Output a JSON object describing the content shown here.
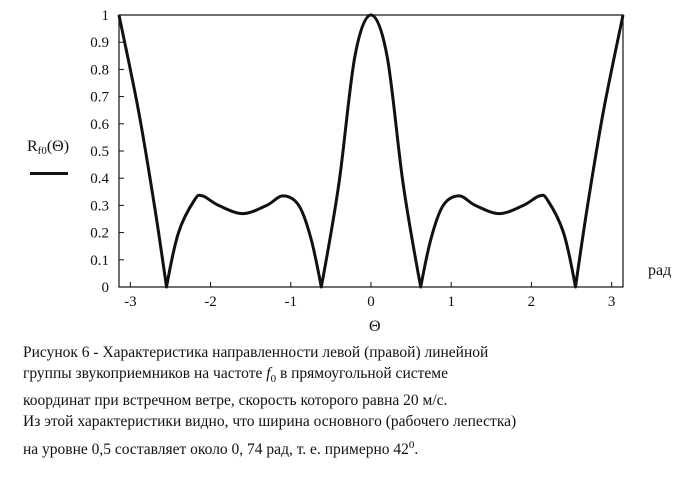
{
  "chart_data": {
    "type": "line",
    "function": "R_f0(Θ)",
    "xlabel": "Θ",
    "xunit": "рад",
    "ylabel_main": "R",
    "ylabel_sub": "f0",
    "ylabel_arg": "(Θ)",
    "xlim": [
      -3.1416,
      3.1416
    ],
    "ylim": [
      0,
      1
    ],
    "x_ticks": [
      "-3",
      "-2",
      "-1",
      "0",
      "1",
      "2",
      "3"
    ],
    "y_ticks": [
      "0",
      "0.1",
      "0.2",
      "0.3",
      "0.4",
      "0.5",
      "0.6",
      "0.7",
      "0.8",
      "0.9",
      "1"
    ],
    "grid": false,
    "series": [
      {
        "x": [
          -3.1416,
          -2.9,
          -2.7,
          -2.55,
          -2.4,
          -2.2,
          -2.1,
          -1.9,
          -1.6,
          -1.3,
          -1.1,
          -0.9,
          -0.75,
          -0.62,
          -0.4,
          -0.2,
          0,
          0.2,
          0.4,
          0.62,
          0.75,
          0.9,
          1.1,
          1.3,
          1.6,
          1.9,
          2.1,
          2.2,
          2.4,
          2.55,
          2.7,
          2.9,
          3.1416
        ],
        "values": [
          1.0,
          0.65,
          0.3,
          0.0,
          0.2,
          0.32,
          0.335,
          0.3,
          0.27,
          0.3,
          0.335,
          0.3,
          0.18,
          0.0,
          0.38,
          0.85,
          1.0,
          0.85,
          0.38,
          0.0,
          0.18,
          0.3,
          0.335,
          0.3,
          0.27,
          0.3,
          0.335,
          0.32,
          0.2,
          0.0,
          0.3,
          0.65,
          1.0
        ]
      }
    ]
  },
  "caption": {
    "line1": "Рисунок 6 - Характеристика направленности левой (правой) линейной",
    "line2_pre": "группы звукоприемников на частоте ",
    "line2_f": "f",
    "line2_sub": "0",
    "line2_post": "  в прямоугольной системе",
    "line3": "координат при встречном ветре, скорость которого равна 20 м/с.",
    "line4": "Из этой характеристики видно, что ширина основного (рабочего лепестка)",
    "line5_pre": "на уровне 0,5 составляет около 0, 74 рад, т. е. примерно 42",
    "line5_sup": "0",
    "line5_post": "."
  },
  "colors": {
    "line": "#111111",
    "background": "#ffffff"
  }
}
